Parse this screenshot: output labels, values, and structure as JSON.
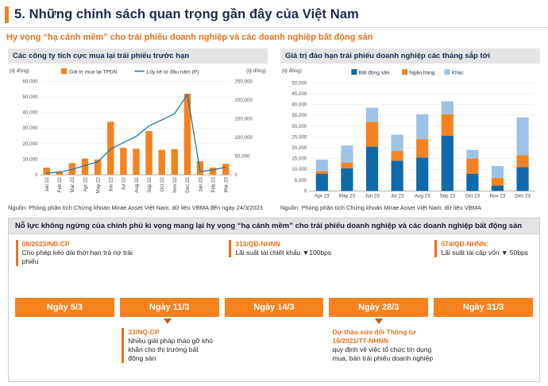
{
  "page": {
    "title": "5. Những chính sách quan trọng gần đây của Việt Nam",
    "subtitle": "Hy vọng “hạ cánh mềm” cho trái phiếu doanh nghiệp và các doanh nghiệp bất động sản",
    "accent_color": "#F5821F"
  },
  "charts": {
    "left": {
      "header": "Các công ty tích cực mua lại trái phiếu trước hạn",
      "source": "Nguồn: Phòng phân tích Chứng khoán Mirae Asset Việt Nam, dữ liệu VBMA đến ngày 24/3/2023"
    },
    "right": {
      "header": "Giá trị đáo hạn trái phiếu doanh nghiệp các tháng sắp tới",
      "source": "Nguồn: Phòng phân tích Chứng khoán Mirae Asset Việt Nam, dữ liệu VBMA"
    }
  },
  "chart_data": [
    {
      "type": "bar",
      "title": "Các công ty tích cực mua lại trái phiếu trước hạn",
      "unit_left": "(tỷ đồng)",
      "unit_right": "(tỷ đồng)",
      "categories": [
        "Jan 22",
        "Feb 22",
        "Mar 22",
        "Apr 22",
        "May 22",
        "Jun 22",
        "Jul 22",
        "Aug 22",
        "Sep 22",
        "Oct 22",
        "Nov 22",
        "Dec 22",
        "Jan 23",
        "Feb 23",
        "Mar 23"
      ],
      "series": [
        {
          "name": "Giá trị mua lại TPDN",
          "type": "bar",
          "axis": "left",
          "color": "#F5821F",
          "values": [
            4600,
            2300,
            7500,
            10400,
            9800,
            34000,
            17300,
            16700,
            28000,
            16000,
            16500,
            52000,
            8700,
            4600,
            7000
          ]
        },
        {
          "name": "Lũy kế từ đầu năm (P)",
          "type": "line",
          "axis": "right",
          "color": "#2178A0",
          "values": [
            4600,
            6900,
            14400,
            24800,
            34600,
            68600,
            85900,
            102600,
            130600,
            146600,
            163100,
            215100,
            8700,
            13300,
            20300
          ]
        }
      ],
      "ylim_left": [
        0,
        60000
      ],
      "ytick_step_left": 10000,
      "ylim_right": [
        0,
        250000
      ],
      "ytick_step_right": 50000,
      "grid": true,
      "legend_position": "top"
    },
    {
      "type": "stacked-bar",
      "title": "Giá trị đáo hạn trái phiếu doanh nghiệp các tháng sắp tới",
      "unit": "(tỷ đồng)",
      "categories": [
        "Apr 23",
        "May 23",
        "Jun 23",
        "Jul 23",
        "Aug 23",
        "Sep 23",
        "Oct 23",
        "Nov 23",
        "Dec 23"
      ],
      "series": [
        {
          "name": "Bất động sản",
          "color": "#1069A8",
          "values": [
            8000,
            10500,
            20500,
            14000,
            15500,
            25500,
            8000,
            2500,
            11000
          ]
        },
        {
          "name": "Ngân hàng",
          "color": "#F5821F",
          "values": [
            1200,
            2500,
            11500,
            4500,
            8500,
            10000,
            7000,
            3500,
            5500
          ]
        },
        {
          "name": "Khác",
          "color": "#9CC3E6",
          "values": [
            5300,
            8000,
            6500,
            7500,
            11500,
            6000,
            4000,
            5500,
            17500
          ]
        }
      ],
      "ylim": [
        0,
        50000
      ],
      "ytick_step": 5000,
      "grid": true,
      "legend_position": "top"
    }
  ],
  "timeline": {
    "header": "Nỗ lực không ngừng của chính phủ kì vọng mang lại hy vọng “hạ cánh mềm” cho trái phiếu doanh nghiệp và các doanh nghiệp bất động sản",
    "boxes": [
      "Ngày 5/3",
      "Ngày 11/3",
      "Ngày 14/3",
      "Ngày 28/3",
      "Ngày 31/3"
    ],
    "top_events": [
      {
        "code": "08/2023/NĐ-CP",
        "desc": "Cho phép kéo dài thời hạn trả nợ trái phiếu"
      },
      {
        "code": "313/QĐ-NHNN",
        "desc": "Lãi suất tái chiết khấu ▼100bps"
      },
      {
        "code": "574/QĐ-NHNN:",
        "desc": "Lãi suất tái cấp vốn ▼ 50bps"
      }
    ],
    "bottom_events": [
      {
        "code": "33/NQ-CP",
        "desc": "Nhiều giải pháp tháo gỡ khó khăn cho thị trường bất động sản"
      },
      {
        "code": "Dự thảo sửa đổi Thông tư 16/2021/TT-NHNN",
        "desc": "quy định về việc tổ chức tín dụng mua, bán trái phiếu doanh nghiệp"
      }
    ]
  }
}
